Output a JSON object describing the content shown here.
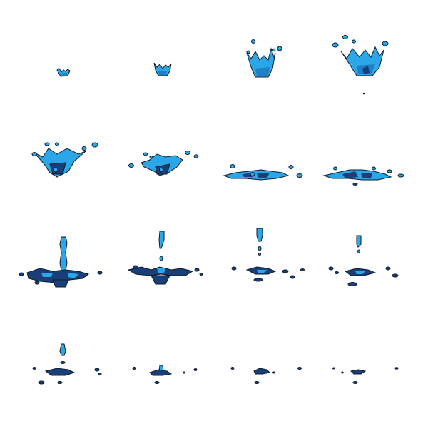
{
  "sprite_sheet": {
    "columns": 4,
    "rows": 4,
    "frame_count": 16,
    "colors": {
      "water_light": "#2aa7e6",
      "water_mid": "#1f7fc6",
      "water_dark": "#1a3f78",
      "outline": "#0e1b2e",
      "background": "#ffffff"
    },
    "frames": [
      {
        "index": 1,
        "stage": "crown-small"
      },
      {
        "index": 2,
        "stage": "crown-small"
      },
      {
        "index": 3,
        "stage": "crown-rising"
      },
      {
        "index": 4,
        "stage": "crown-peak"
      },
      {
        "index": 5,
        "stage": "crown-collapse"
      },
      {
        "index": 6,
        "stage": "crown-collapse"
      },
      {
        "index": 7,
        "stage": "puddle-spread"
      },
      {
        "index": 8,
        "stage": "puddle-spread"
      },
      {
        "index": 9,
        "stage": "jet-tall"
      },
      {
        "index": 10,
        "stage": "jet-breaking"
      },
      {
        "index": 11,
        "stage": "jet-breaking"
      },
      {
        "index": 12,
        "stage": "jet-drop"
      },
      {
        "index": 13,
        "stage": "jet-drop"
      },
      {
        "index": 14,
        "stage": "fading"
      },
      {
        "index": 15,
        "stage": "fading"
      },
      {
        "index": 16,
        "stage": "fading"
      }
    ]
  }
}
